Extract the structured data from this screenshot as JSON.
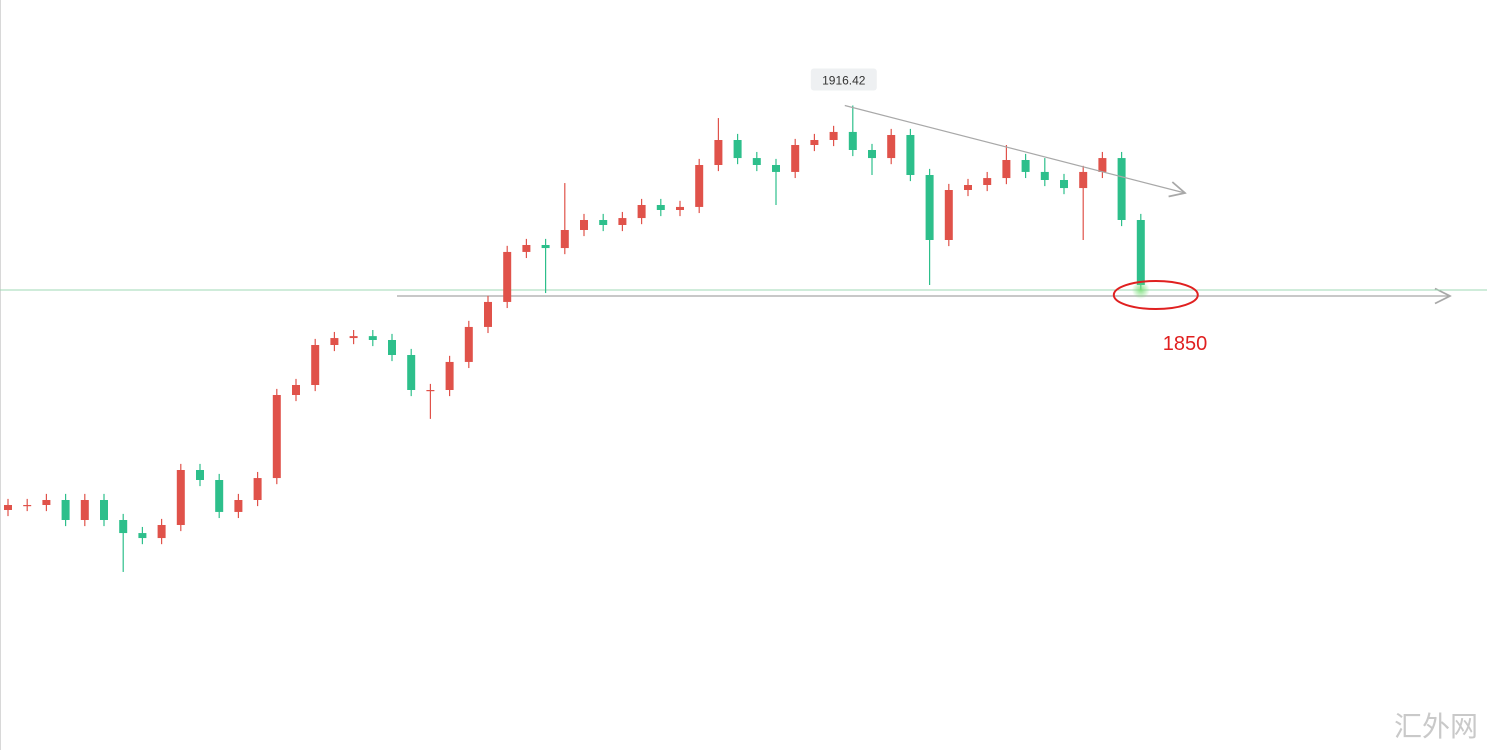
{
  "chart_data": {
    "type": "candlestick",
    "open": [
      1770.8,
      1772.6,
      1772.6,
      1774.4,
      1767.2,
      1774.4,
      1767.2,
      1762.5,
      1760.7,
      1765.4,
      1785.2,
      1781.6,
      1770.1,
      1774.4,
      1782.3,
      1812.2,
      1815.8,
      1830.2,
      1832.7,
      1833.4,
      1832.0,
      1826.6,
      1814.0,
      1814.0,
      1824.1,
      1836.7,
      1845.7,
      1863.7,
      1866.2,
      1865.1,
      1871.6,
      1875.2,
      1873.4,
      1875.9,
      1880.6,
      1878.8,
      1879.9,
      1895.0,
      1904.0,
      1897.5,
      1895.0,
      1892.5,
      1902.2,
      1904.0,
      1906.9,
      1900.4,
      1897.5,
      1905.8,
      1891.4,
      1868.0,
      1886.0,
      1887.8,
      1890.3,
      1896.8,
      1892.5,
      1889.6,
      1886.7,
      1892.5,
      1897.5,
      1875.2
    ],
    "high": [
      1774.8,
      1774.8,
      1776.6,
      1776.6,
      1776.6,
      1776.6,
      1769.4,
      1764.7,
      1767.6,
      1787.4,
      1787.4,
      1783.8,
      1776.6,
      1784.5,
      1814.4,
      1818.0,
      1832.4,
      1834.9,
      1835.6,
      1835.6,
      1834.2,
      1828.8,
      1816.2,
      1826.3,
      1838.9,
      1847.9,
      1865.9,
      1868.4,
      1868.4,
      1888.5,
      1877.4,
      1877.4,
      1878.1,
      1882.8,
      1882.8,
      1882.1,
      1897.2,
      1911.9,
      1906.2,
      1899.7,
      1897.2,
      1904.4,
      1906.2,
      1909.1,
      1916.42,
      1902.6,
      1908.0,
      1908.0,
      1893.6,
      1888.2,
      1890.0,
      1892.5,
      1902.2,
      1899.0,
      1897.5,
      1891.8,
      1894.7,
      1899.7,
      1899.7,
      1877.4
    ],
    "low": [
      1768.6,
      1770.4,
      1770.4,
      1765.0,
      1765.0,
      1765.0,
      1748.5,
      1758.5,
      1758.5,
      1763.2,
      1779.4,
      1767.9,
      1767.9,
      1772.2,
      1780.1,
      1810.0,
      1813.6,
      1828.0,
      1830.5,
      1829.8,
      1824.4,
      1811.8,
      1803.6,
      1811.8,
      1821.9,
      1834.5,
      1843.5,
      1861.5,
      1848.9,
      1862.9,
      1869.4,
      1871.2,
      1871.2,
      1873.7,
      1876.6,
      1876.6,
      1877.7,
      1892.8,
      1895.3,
      1892.8,
      1880.6,
      1890.3,
      1900.0,
      1901.8,
      1898.2,
      1891.4,
      1895.3,
      1889.2,
      1851.8,
      1865.8,
      1883.8,
      1885.6,
      1888.1,
      1890.3,
      1887.4,
      1884.5,
      1868.0,
      1890.3,
      1873.0,
      1850.0
    ],
    "close": [
      1772.6,
      1772.6,
      1774.4,
      1767.2,
      1774.4,
      1767.2,
      1762.5,
      1760.7,
      1765.4,
      1785.2,
      1781.6,
      1770.1,
      1774.4,
      1782.3,
      1812.2,
      1815.8,
      1830.2,
      1832.7,
      1833.4,
      1832.0,
      1826.6,
      1814.0,
      1814.0,
      1824.1,
      1836.7,
      1845.7,
      1863.7,
      1866.2,
      1865.1,
      1871.6,
      1875.2,
      1873.4,
      1875.9,
      1880.6,
      1878.8,
      1879.9,
      1895.0,
      1904.0,
      1897.5,
      1895.0,
      1892.5,
      1902.2,
      1904.0,
      1906.9,
      1900.4,
      1897.5,
      1905.8,
      1891.4,
      1868.0,
      1886.0,
      1887.8,
      1890.3,
      1896.8,
      1892.5,
      1889.6,
      1886.7,
      1892.5,
      1897.5,
      1875.2,
      1851.8
    ],
    "up_color": "#e0524a",
    "down_color": "#2dbf8b",
    "ylim": [
      1684.4,
      1954.4
    ],
    "annotations": {
      "peak": 1916.42,
      "level": 1850
    }
  },
  "watermark": "汇外网"
}
